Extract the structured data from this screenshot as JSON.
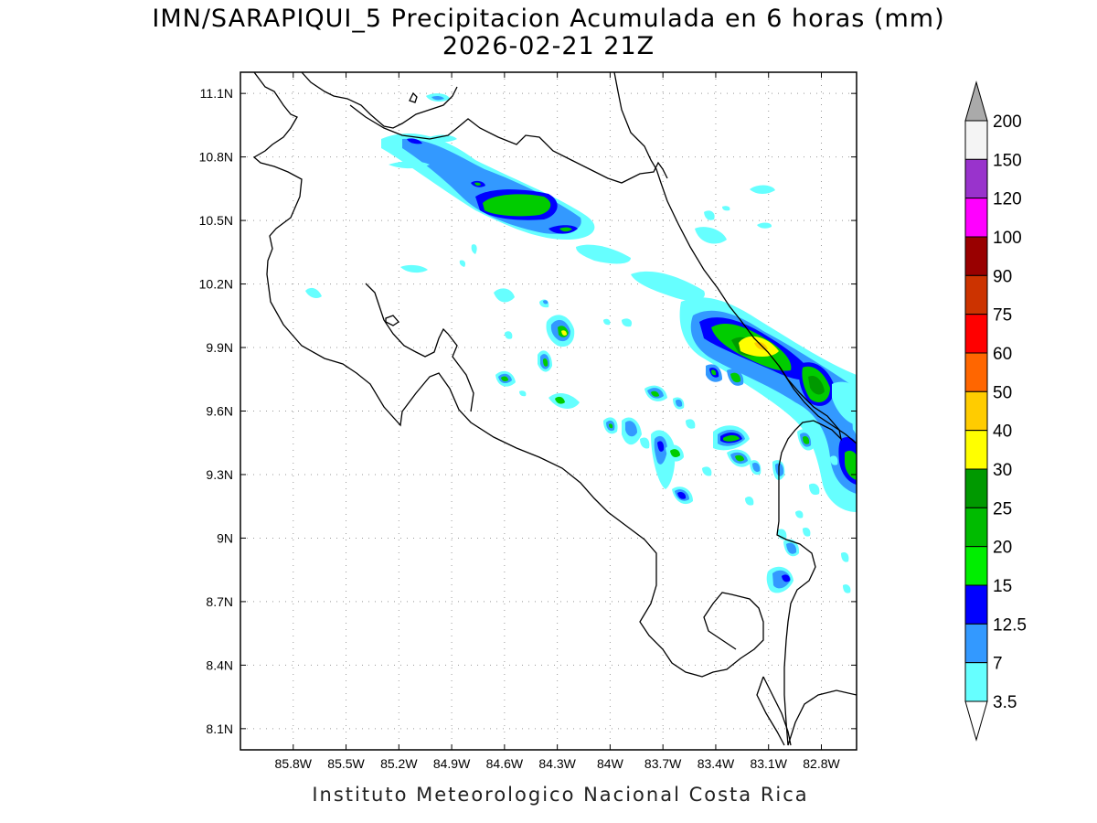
{
  "title": {
    "line1": "IMN/SARAPIQUI_5 Precipitacion Acumulada en 6 horas (mm)",
    "line2": "2026-02-21 21Z"
  },
  "footer": "Instituto Meteorologico Nacional Costa Rica",
  "map": {
    "lon_range": [
      -86.1,
      -82.6
    ],
    "lat_range": [
      8.0,
      11.2
    ],
    "lon_ticks": [
      "85.8W",
      "85.5W",
      "85.2W",
      "84.9W",
      "84.6W",
      "84.3W",
      "84W",
      "83.7W",
      "83.4W",
      "83.1W",
      "82.8W"
    ],
    "lat_ticks": [
      "11.1N",
      "10.8N",
      "10.5N",
      "10.2N",
      "9.9N",
      "9.6N",
      "9.3N",
      "9N",
      "8.7N",
      "8.4N",
      "8.1N"
    ],
    "grid": true
  },
  "legend": {
    "labels": [
      "200",
      "150",
      "120",
      "100",
      "90",
      "75",
      "60",
      "50",
      "40",
      "30",
      "25",
      "20",
      "15",
      "12.5",
      "7",
      "3.5"
    ],
    "colors": [
      "#f4f4f4",
      "#9933cc",
      "#ff00ff",
      "#990000",
      "#cc3300",
      "#ff0000",
      "#ff6600",
      "#ffcc00",
      "#ffff00",
      "#009900",
      "#00bb00",
      "#00ee00",
      "#0000ff",
      "#3399ff",
      "#66ffff"
    ],
    "over_color": "#aaaaaa",
    "under_color": "#ffffff"
  }
}
